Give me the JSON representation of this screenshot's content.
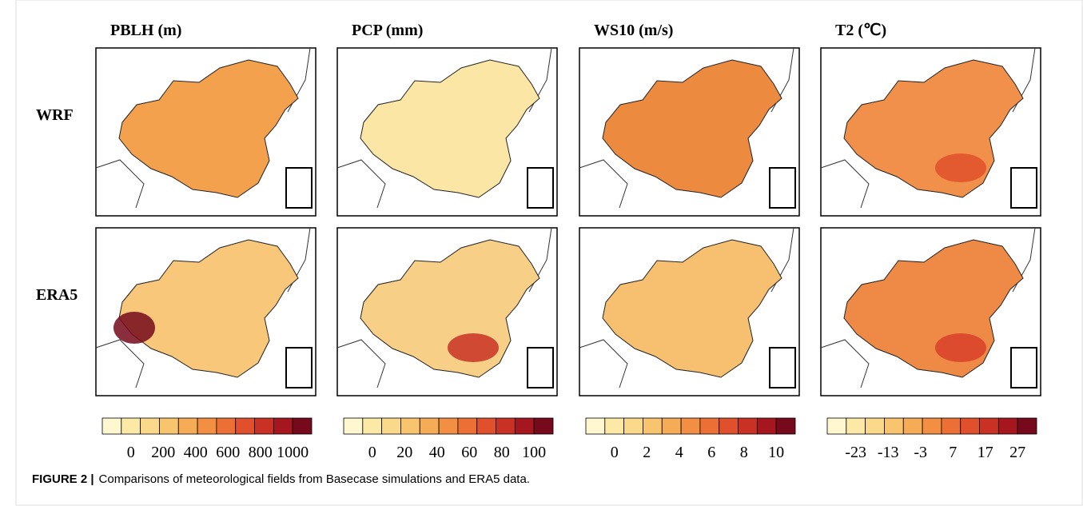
{
  "columns": [
    {
      "title": "PBLH (m)",
      "colorbar_ticks": [
        0,
        200,
        400,
        600,
        800,
        1000
      ]
    },
    {
      "title": "PCP (mm)",
      "colorbar_ticks": [
        0,
        20,
        40,
        60,
        80,
        100
      ]
    },
    {
      "title": "WS10 (m/s)",
      "colorbar_ticks": [
        0,
        2,
        4,
        6,
        8,
        10
      ]
    },
    {
      "title": "T2 (℃)",
      "colorbar_ticks": [
        -23,
        -13,
        -3,
        7,
        17,
        27
      ]
    }
  ],
  "rows": [
    "WRF",
    "ERA5"
  ],
  "colormap": [
    "#fff7cf",
    "#fde9a6",
    "#fbd98a",
    "#f9c46e",
    "#f6ab56",
    "#f28f42",
    "#ec7036",
    "#e0502c",
    "#c93124",
    "#a6161f",
    "#76091b"
  ],
  "caption": {
    "label": "FIGURE 2 |",
    "text": "Comparisons of meteorological fields from Basecase simulations and ERA5 data."
  }
}
